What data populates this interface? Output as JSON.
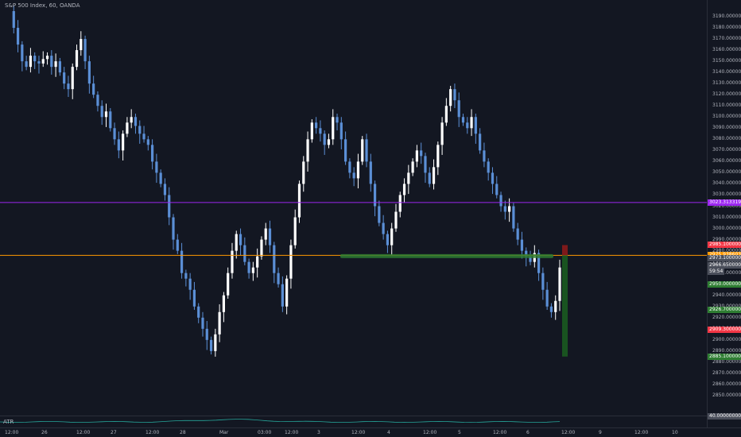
{
  "chart_title": "S&P 500 Index, 60, OANDA",
  "atr_label": "ATR",
  "colors": {
    "background": "#131722",
    "candle_up": "#ffffff",
    "candle_down": "#5b8fd6",
    "horizontal_line_purple": "#9c27f0",
    "horizontal_line_orange": "#ff9800",
    "support_zone": "#2e7d32",
    "stop_box": "#8b1a1a",
    "target_box": "#1b5e20",
    "atr_line": "#26a69a"
  },
  "chart_data": {
    "type": "candlestick",
    "y_axis": {
      "ylim": [
        2845,
        3195
      ],
      "ticks": [
        "3190.00000000",
        "3180.00000000",
        "3170.00000000",
        "3160.00000000",
        "3150.00000000",
        "3140.00000000",
        "3130.00000000",
        "3120.00000000",
        "3110.00000000",
        "3100.00000000",
        "3090.00000000",
        "3080.00000000",
        "3070.00000000",
        "3060.00000000",
        "3050.00000000",
        "3040.00000000",
        "3030.00000000",
        "3020.00000000",
        "3010.00000000",
        "3000.00000000",
        "2990.00000000",
        "2980.00000000",
        "2970.00000000",
        "2960.00000000",
        "2950.00000000",
        "2940.00000000",
        "2930.00000000",
        "2920.00000000",
        "2910.00000000",
        "2900.00000000",
        "2890.00000000",
        "2880.00000000",
        "2870.00000000",
        "2860.00000000",
        "2850.00000000"
      ]
    },
    "x_axis": {
      "labels": [
        "12:00",
        "26",
        "12:00",
        "27",
        "12:00",
        "28",
        "Mar",
        "03:00",
        "12:00",
        "3",
        "12:00",
        "4",
        "12:00",
        "5",
        "12:00",
        "6",
        "12:00",
        "9",
        "12:00",
        "10"
      ]
    },
    "price_tags": [
      {
        "label": "3023.31331914",
        "value": 3023.3,
        "color": "#9c27f0"
      },
      {
        "label": "2985.10000000",
        "value": 2985.1,
        "color": "#f23645"
      },
      {
        "label": "2975.93860318",
        "value": 2975.9,
        "color": "#ff9800"
      },
      {
        "label": "2973.10000000",
        "value": 2973.1,
        "color": "#4a4e5a"
      },
      {
        "label": "2966.65000000",
        "value": 2966.7,
        "color": "#4a4e5a"
      },
      {
        "label": "59:54",
        "value": 2961.5,
        "color": "#4a4e5a"
      },
      {
        "label": "2950.00000000",
        "value": 2950.0,
        "color": "#2e7d32"
      },
      {
        "label": "2926.70000000",
        "value": 2926.7,
        "color": "#2e7d32"
      },
      {
        "label": "2909.30000000",
        "value": 2909.3,
        "color": "#f23645"
      },
      {
        "label": "2885.10000000",
        "value": 2885.1,
        "color": "#2e7d32"
      },
      {
        "label": "40.00000000",
        "value": null,
        "color": "#4a4e5a"
      }
    ],
    "horizontal_lines": [
      {
        "name": "resistance",
        "value": 3023.3,
        "color": "#9c27f0"
      },
      {
        "name": "entry",
        "value": 2975.9,
        "color": "#ff9800"
      }
    ],
    "support_zone": {
      "from": 2973.5,
      "to": 2977.0
    },
    "position_box": {
      "entry": 2975.9,
      "stop": 2985.1,
      "target": 2885.1
    }
  }
}
